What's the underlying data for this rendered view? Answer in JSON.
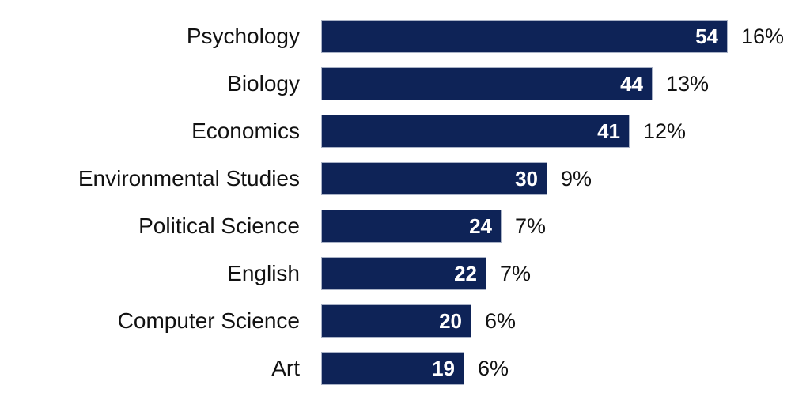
{
  "chart_data": {
    "type": "bar",
    "orientation": "horizontal",
    "title": "",
    "xlabel": "",
    "ylabel": "",
    "categories": [
      "Psychology",
      "Biology",
      "Economics",
      "Environmental Studies",
      "Political Science",
      "English",
      "Computer Science",
      "Art"
    ],
    "values": [
      54,
      44,
      41,
      30,
      24,
      22,
      20,
      19
    ],
    "value_labels": [
      "54",
      "44",
      "41",
      "30",
      "24",
      "22",
      "20",
      "19"
    ],
    "percent_labels": [
      "16%",
      "13%",
      "12%",
      "9%",
      "7%",
      "7%",
      "6%",
      "6%"
    ],
    "xlim": [
      0,
      54
    ],
    "grid": false,
    "legend": false,
    "axes_visible": false,
    "colors": {
      "bar_fill": "#0e2357",
      "bar_border": "#a9b2c6",
      "category_label": "#111111",
      "value_label": "#ffffff",
      "percent_label": "#111111",
      "background": "#ffffff"
    }
  }
}
